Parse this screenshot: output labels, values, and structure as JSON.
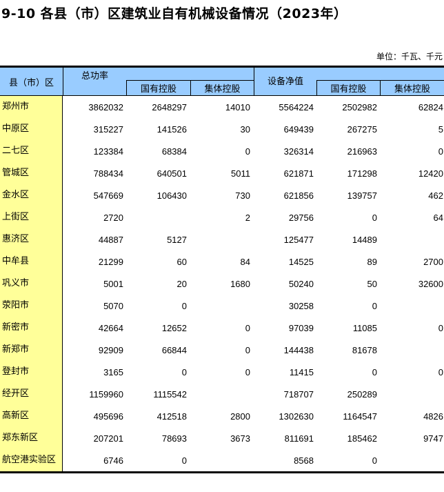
{
  "title": "9-10 各县（市）区建筑业自有机械设备情况（2023年）",
  "unit": "单位：千瓦、千元",
  "headers": {
    "region": "县（市）区",
    "total_power": "总功率",
    "state_owned": "国有控股",
    "collective": "集体控股",
    "net_value": "设备净值",
    "state_owned2": "国有控股",
    "collective2": "集体控股"
  },
  "rows": [
    [
      "郑州市",
      "3862032",
      "2648297",
      "14010",
      "5564224",
      "2502982",
      "62824"
    ],
    [
      "中原区",
      "315227",
      "141526",
      "30",
      "649439",
      "267275",
      "5"
    ],
    [
      "二七区",
      "123384",
      "68384",
      "0",
      "326314",
      "216963",
      "0"
    ],
    [
      "管城区",
      "788434",
      "640501",
      "5011",
      "621871",
      "171298",
      "12420"
    ],
    [
      "金水区",
      "547669",
      "106430",
      "730",
      "621856",
      "139757",
      "462"
    ],
    [
      "上街区",
      "2720",
      "",
      "2",
      "29756",
      "0",
      "64"
    ],
    [
      "惠济区",
      "44887",
      "5127",
      "",
      "125477",
      "14489",
      ""
    ],
    [
      "中牟县",
      "21299",
      "60",
      "84",
      "14525",
      "89",
      "2700"
    ],
    [
      "巩义市",
      "5001",
      "20",
      "1680",
      "50240",
      "50",
      "32600"
    ],
    [
      "荥阳市",
      "5070",
      "0",
      "",
      "30258",
      "0",
      ""
    ],
    [
      "新密市",
      "42664",
      "12652",
      "0",
      "97039",
      "11085",
      "0"
    ],
    [
      "新郑市",
      "92909",
      "66844",
      "0",
      "144438",
      "81678",
      ""
    ],
    [
      "登封市",
      "3165",
      "0",
      "0",
      "11415",
      "0",
      "0"
    ],
    [
      "经开区",
      "1159960",
      "1115542",
      "",
      "718707",
      "250289",
      ""
    ],
    [
      "高新区",
      "495696",
      "412518",
      "2800",
      "1302630",
      "1164547",
      "4826"
    ],
    [
      "郑东新区",
      "207201",
      "78693",
      "3673",
      "811691",
      "185462",
      "9747"
    ],
    [
      "航空港实验区",
      "6746",
      "0",
      "",
      "8568",
      "0",
      ""
    ]
  ],
  "colors": {
    "header_bg": "#99ccff",
    "name_col_bg": "#ffff99"
  }
}
